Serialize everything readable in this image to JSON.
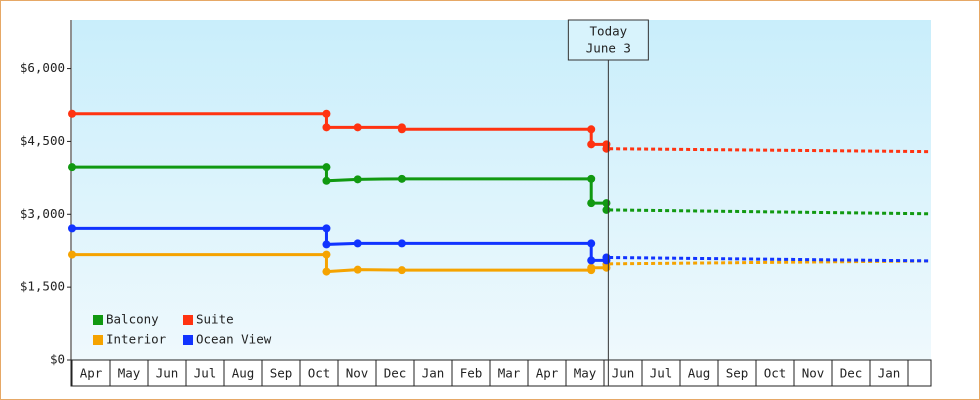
{
  "chart_data": {
    "type": "line",
    "categories": [
      "Apr",
      "May",
      "Jun",
      "Jul",
      "Aug",
      "Sep",
      "Oct",
      "Nov",
      "Dec",
      "Jan",
      "Feb",
      "Mar",
      "Apr",
      "May",
      "Jun",
      "Jul",
      "Aug",
      "Sep",
      "Oct",
      "Nov",
      "Dec",
      "Jan"
    ],
    "xlim": [
      0,
      22.55
    ],
    "ylim": [
      0,
      7000
    ],
    "yticks": [
      {
        "value": 0,
        "label": "$0"
      },
      {
        "value": 1500,
        "label": "$1,500"
      },
      {
        "value": 3000,
        "label": "$3,000"
      },
      {
        "value": 4500,
        "label": "$4,500"
      },
      {
        "value": 6000,
        "label": "$6,000"
      }
    ],
    "today": {
      "x": 14.08,
      "lines": [
        "Today",
        "June 3"
      ]
    },
    "legend": "lower left",
    "series": [
      {
        "name": "Balcony",
        "color": "#119911",
        "x": [
          0,
          6.68,
          6.68,
          7.5,
          8.66,
          13.63,
          13.63,
          14.03,
          14.03
        ],
        "values": [
          3970,
          3970,
          3690,
          3720,
          3730,
          3730,
          3230,
          3230,
          3090
        ],
        "forecast_x": [
          14.1,
          22.55
        ],
        "forecast_values": [
          3090,
          3010
        ]
      },
      {
        "name": "Suite",
        "color": "#ff3311",
        "x": [
          0,
          6.68,
          6.68,
          7.5,
          8.66,
          8.66,
          13.63,
          13.63,
          14.03,
          14.03
        ],
        "values": [
          5070,
          5070,
          4790,
          4790,
          4790,
          4750,
          4750,
          4440,
          4440,
          4350
        ],
        "forecast_x": [
          14.1,
          22.55
        ],
        "forecast_values": [
          4350,
          4290
        ]
      },
      {
        "name": "Interior",
        "color": "#f5a300",
        "x": [
          0,
          6.68,
          6.68,
          7.5,
          8.66,
          13.63,
          13.63,
          14.03,
          14.03
        ],
        "values": [
          2170,
          2170,
          1820,
          1860,
          1850,
          1850,
          1900,
          1900,
          1970
        ],
        "forecast_x": [
          14.1,
          22.55
        ],
        "forecast_values": [
          1980,
          2040
        ]
      },
      {
        "name": "Ocean View",
        "color": "#1133ff",
        "x": [
          0,
          6.68,
          6.68,
          7.5,
          8.66,
          13.63,
          13.63,
          14.03,
          14.03
        ],
        "values": [
          2710,
          2710,
          2380,
          2400,
          2400,
          2400,
          2050,
          2050,
          2110
        ],
        "forecast_x": [
          14.1,
          22.55
        ],
        "forecast_values": [
          2110,
          2040
        ]
      }
    ]
  }
}
